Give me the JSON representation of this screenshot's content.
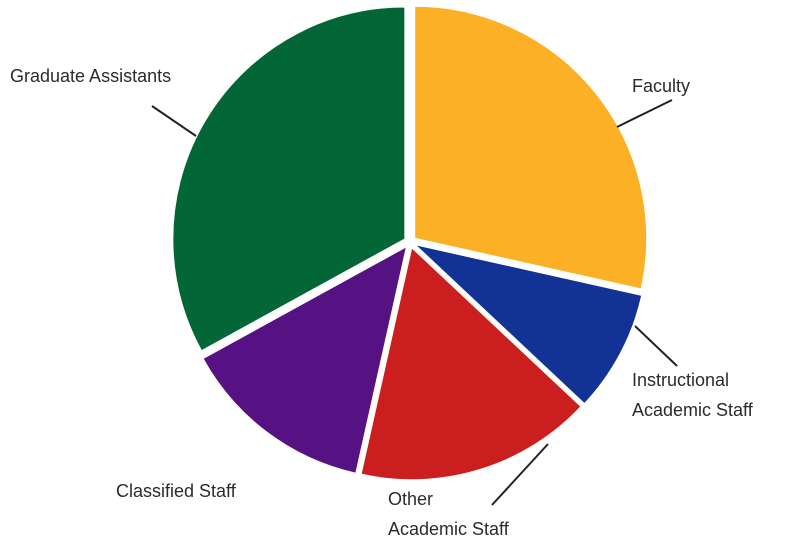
{
  "chart_data": {
    "type": "pie",
    "title": "",
    "slices": [
      {
        "label_lines": [
          "Faculty"
        ],
        "value": 28.5,
        "color": "#FBB025"
      },
      {
        "label_lines": [
          "Instructional",
          "Academic Staff"
        ],
        "value": 8.5,
        "color": "#133296"
      },
      {
        "label_lines": [
          "Other",
          "Academic Staff"
        ],
        "value": 16.5,
        "color": "#CB1F1F"
      },
      {
        "label_lines": [
          "Classified Staff"
        ],
        "value": 13.5,
        "color": "#561182"
      },
      {
        "label_lines": [
          "Graduate Assistants"
        ],
        "value": 33.0,
        "color": "#036637"
      }
    ],
    "start_angle_deg": 0,
    "direction": "clockwise",
    "legend": "none",
    "labels": "outside with leader lines"
  }
}
